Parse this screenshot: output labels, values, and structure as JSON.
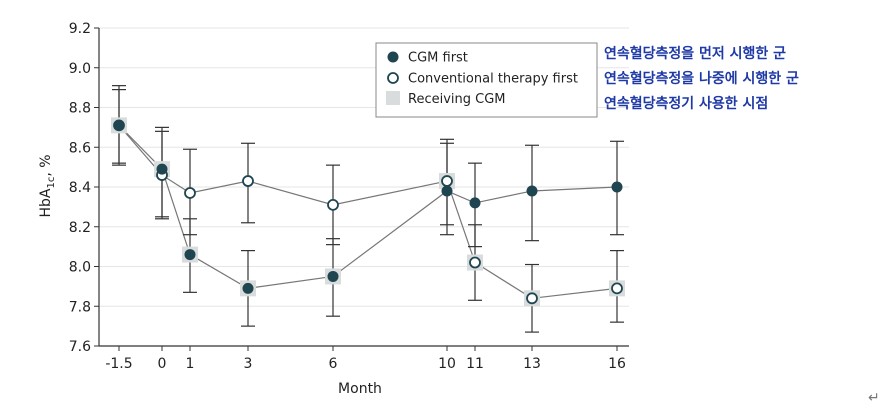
{
  "chart_data": {
    "type": "line",
    "title": "",
    "xlabel": "Month",
    "ylabel": "HbA1c, %",
    "ylabel_main": "HbA",
    "ylabel_sub": "1c",
    "ylabel_rest": ", %",
    "x_ticks": [
      "-1.5",
      "0",
      "1",
      "3",
      "6",
      "10",
      "11",
      "13",
      "16"
    ],
    "x_tick_values": [
      -1.5,
      0,
      1,
      3,
      6,
      10,
      11,
      13,
      16
    ],
    "ylim": [
      7.6,
      9.2
    ],
    "y_ticks": [
      "7.6",
      "7.8",
      "8.0",
      "8.2",
      "8.4",
      "8.6",
      "8.8",
      "9.0",
      "9.2"
    ],
    "y_tick_values": [
      7.6,
      7.8,
      8.0,
      8.2,
      8.4,
      8.6,
      8.8,
      9.0,
      9.2
    ],
    "grid": "horizontal",
    "legend_position": "top-right",
    "series": [
      {
        "name": "CGM first",
        "marker": "filled-circle",
        "color": "#1e4550",
        "x": [
          -1.5,
          0,
          1,
          3,
          6,
          10,
          11,
          13,
          16
        ],
        "y": [
          8.71,
          8.49,
          8.06,
          7.89,
          7.95,
          8.38,
          8.32,
          8.38,
          8.4
        ],
        "err_low": [
          8.51,
          8.24,
          7.87,
          7.7,
          7.75,
          8.16,
          8.1,
          8.13,
          8.16
        ],
        "err_high": [
          8.91,
          8.7,
          8.24,
          8.08,
          8.14,
          8.64,
          8.52,
          8.61,
          8.63
        ],
        "cgm_marker": [
          false,
          true,
          true,
          true,
          true,
          false,
          false,
          false,
          false
        ]
      },
      {
        "name": "Conventional therapy first",
        "marker": "open-circle",
        "color": "#1e4550",
        "x": [
          -1.5,
          0,
          1,
          3,
          6,
          10,
          11,
          13,
          16
        ],
        "y": [
          8.71,
          8.46,
          8.37,
          8.43,
          8.31,
          8.43,
          8.02,
          7.84,
          7.89
        ],
        "err_low": [
          8.52,
          8.25,
          8.16,
          8.22,
          8.11,
          8.21,
          7.83,
          7.67,
          7.72
        ],
        "err_high": [
          8.89,
          8.68,
          8.59,
          8.62,
          8.51,
          8.62,
          8.21,
          8.01,
          8.08
        ],
        "cgm_marker": [
          true,
          false,
          false,
          false,
          false,
          true,
          true,
          true,
          true
        ]
      }
    ],
    "legend": [
      {
        "label": "CGM first",
        "symbol": "filled-circle"
      },
      {
        "label": "Conventional therapy first",
        "symbol": "open-circle"
      },
      {
        "label": "Receiving CGM",
        "symbol": "gray-square"
      }
    ],
    "colors": {
      "marker_dark": "#1e4550",
      "cgm_square": "#d9dcdc",
      "grid": "#e6e6e6",
      "line": "#777777",
      "error_bar": "#333333",
      "legend_border": "#888888",
      "annotation": "#1f3aa6"
    }
  },
  "annotations": {
    "kor1": "연속혈당측정을 먼저 시행한 군",
    "kor2": "연속혈당측정을 나중에 시행한 군",
    "kor3": "연속혈당측정기 사용한 시점"
  },
  "return_mark": "↵"
}
